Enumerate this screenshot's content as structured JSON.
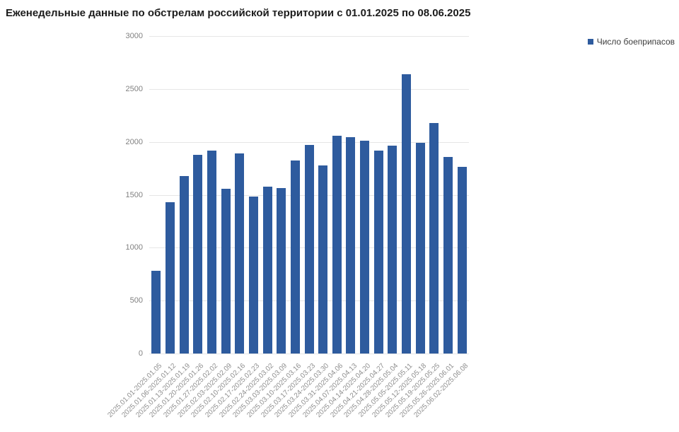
{
  "title": "Еженедельные данные по обстрелам российской территории с 01.01.2025 по 08.06.2025",
  "legend": {
    "label": "Число боеприпасов"
  },
  "colors": {
    "bar": "#2e5b9e",
    "grid": "#e6e6e6",
    "y_axis_text": "#818181",
    "x_axis_text": "#8f8f8f",
    "title_text": "#1c1c1c",
    "background": "#ffffff"
  },
  "chart_data": {
    "type": "bar",
    "title": "Еженедельные данные по обстрелам российской территории с 01.01.2025 по 08.06.2025",
    "xlabel": "",
    "ylabel": "",
    "ylim": [
      0,
      3000
    ],
    "yticks": [
      0,
      500,
      1000,
      1500,
      2000,
      2500,
      3000
    ],
    "grid": true,
    "legend_position": "top-right",
    "categories": [
      "2025.01.01-2025.01.05",
      "2025.01.06-2025.01.12",
      "2025.01.13-2025.01.19",
      "2025.01.20-2025.01.26",
      "2025.01.27-2025.02.02",
      "2025.02.03-2025.02.09",
      "2025.02.10-2025.02.16",
      "2025.02.17-2025.02.23",
      "2025.02.24-2025.03.02",
      "2025.03.03-2025.03.09",
      "2025.03.10-2025.03.16",
      "2025.03.17-2025.03.23",
      "2025.03.24-2025.03.30",
      "2025.03.31-2025.04.06",
      "2025.04.07-2025.04.13",
      "2025.04.14-2025.04.20",
      "2025.04.21-2025.04.27",
      "2025.04.28-2025.05.04",
      "2025.05.05-2025.05.11",
      "2025.05.12-2025.05.18",
      "2025.05.19-2025.05.25",
      "2025.05.26-2025.06.01",
      "2025.06.02-2025.06.08"
    ],
    "series": [
      {
        "name": "Число боеприпасов",
        "values": [
          785,
          1430,
          1675,
          1875,
          1920,
          1555,
          1890,
          1480,
          1580,
          1565,
          1825,
          1970,
          1775,
          2060,
          2045,
          2010,
          1915,
          1965,
          2640,
          1990,
          2180,
          1855,
          1765
        ]
      }
    ]
  }
}
